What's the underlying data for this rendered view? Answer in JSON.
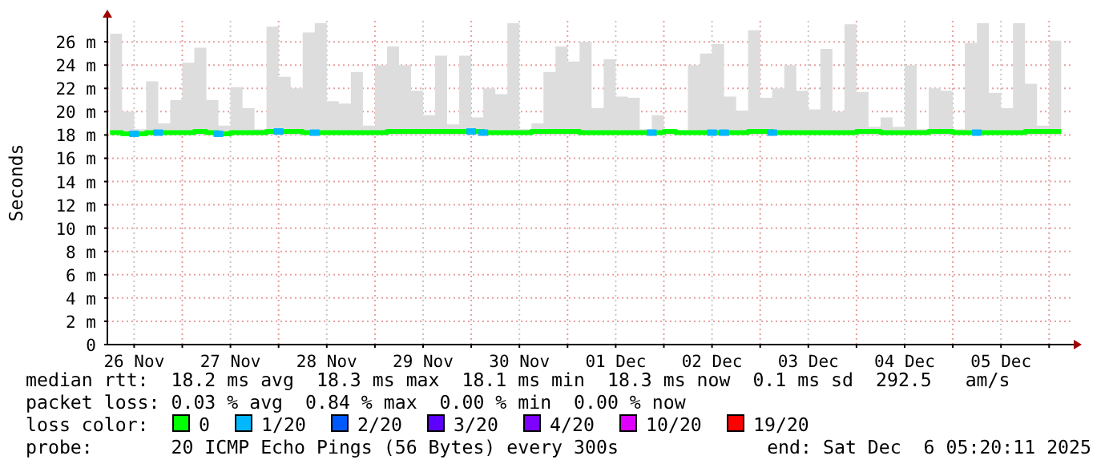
{
  "chart_data": {
    "type": "line",
    "ylabel": "Seconds",
    "legend_title": "loss color:",
    "legend": "bottom",
    "grid": true,
    "line_style": "solid",
    "marker": "none",
    "xlim": [
      "2025-11-26T05:20",
      "2025-12-06T05:20"
    ],
    "xticks": [
      {
        "value": "2025-11-26T12:00",
        "label": "26 Nov"
      },
      {
        "value": "2025-11-27T00:00",
        "label": null
      },
      {
        "value": "2025-11-27T12:00",
        "label": "27 Nov"
      },
      {
        "value": "2025-11-28T00:00",
        "label": null
      },
      {
        "value": "2025-11-28T12:00",
        "label": "28 Nov"
      },
      {
        "value": "2025-11-29T00:00",
        "label": null
      },
      {
        "value": "2025-11-29T12:00",
        "label": "29 Nov"
      },
      {
        "value": "2025-11-30T00:00",
        "label": null
      },
      {
        "value": "2025-11-30T12:00",
        "label": "30 Nov"
      },
      {
        "value": "2025-12-01T00:00",
        "label": null
      },
      {
        "value": "2025-12-01T12:00",
        "label": "01 Dec"
      },
      {
        "value": "2025-12-02T00:00",
        "label": null
      },
      {
        "value": "2025-12-02T12:00",
        "label": "02 Dec"
      },
      {
        "value": "2025-12-03T00:00",
        "label": null
      },
      {
        "value": "2025-12-03T12:00",
        "label": "03 Dec"
      },
      {
        "value": "2025-12-04T00:00",
        "label": null
      },
      {
        "value": "2025-12-04T12:00",
        "label": "04 Dec"
      },
      {
        "value": "2025-12-05T00:00",
        "label": null
      },
      {
        "value": "2025-12-05T12:00",
        "label": "05 Dec"
      },
      {
        "value": "2025-12-06T00:00",
        "label": null
      }
    ],
    "ylim": [
      0,
      27.8
    ],
    "yticks": [
      0,
      {
        "value": 2,
        "label": "2 m"
      },
      {
        "value": 4,
        "label": "4 m"
      },
      {
        "value": 6,
        "label": "6 m"
      },
      {
        "value": 8,
        "label": "8 m"
      },
      {
        "value": 10,
        "label": "10 m"
      },
      {
        "value": 12,
        "label": "12 m"
      },
      {
        "value": 14,
        "label": "14 m"
      },
      {
        "value": 16,
        "label": "16 m"
      },
      {
        "value": 18,
        "label": "18 m"
      },
      {
        "value": 20,
        "label": "20 m"
      },
      {
        "value": 22,
        "label": "22 m"
      },
      {
        "value": 24,
        "label": "24 m"
      },
      {
        "value": 26,
        "label": "26 m"
      }
    ],
    "x": [
      "2025-11-26T06:00",
      "2025-11-26T09:00",
      "2025-11-26T12:00",
      "2025-11-26T15:00",
      "2025-11-26T18:00",
      "2025-11-26T21:00",
      "2025-11-27T00:00",
      "2025-11-27T03:00",
      "2025-11-27T06:00",
      "2025-11-27T09:00",
      "2025-11-27T12:00",
      "2025-11-27T15:00",
      "2025-11-27T18:00",
      "2025-11-27T21:00",
      "2025-11-28T00:00",
      "2025-11-28T03:00",
      "2025-11-28T06:00",
      "2025-11-28T09:00",
      "2025-11-28T12:00",
      "2025-11-28T15:00",
      "2025-11-28T18:00",
      "2025-11-28T21:00",
      "2025-11-29T00:00",
      "2025-11-29T03:00",
      "2025-11-29T06:00",
      "2025-11-29T09:00",
      "2025-11-29T12:00",
      "2025-11-29T15:00",
      "2025-11-29T18:00",
      "2025-11-29T21:00",
      "2025-11-30T00:00",
      "2025-11-30T03:00",
      "2025-11-30T06:00",
      "2025-11-30T09:00",
      "2025-11-30T12:00",
      "2025-11-30T15:00",
      "2025-11-30T18:00",
      "2025-11-30T21:00",
      "2025-12-01T00:00",
      "2025-12-01T03:00",
      "2025-12-01T06:00",
      "2025-12-01T09:00",
      "2025-12-01T12:00",
      "2025-12-01T15:00",
      "2025-12-01T18:00",
      "2025-12-01T21:00",
      "2025-12-02T00:00",
      "2025-12-02T03:00",
      "2025-12-02T06:00",
      "2025-12-02T09:00",
      "2025-12-02T12:00",
      "2025-12-02T15:00",
      "2025-12-02T18:00",
      "2025-12-02T21:00",
      "2025-12-03T00:00",
      "2025-12-03T03:00",
      "2025-12-03T06:00",
      "2025-12-03T09:00",
      "2025-12-03T12:00",
      "2025-12-03T15:00",
      "2025-12-03T18:00",
      "2025-12-03T21:00",
      "2025-12-04T00:00",
      "2025-12-04T03:00",
      "2025-12-04T06:00",
      "2025-12-04T09:00",
      "2025-12-04T12:00",
      "2025-12-04T15:00",
      "2025-12-04T18:00",
      "2025-12-04T21:00",
      "2025-12-05T00:00",
      "2025-12-05T03:00",
      "2025-12-05T06:00",
      "2025-12-05T09:00",
      "2025-12-05T12:00",
      "2025-12-05T15:00",
      "2025-12-05T18:00",
      "2025-12-05T21:00",
      "2025-12-06T00:00",
      "2025-12-06T03:00"
    ],
    "series": [
      {
        "name": "0",
        "color": "#00ff00",
        "values": [
          18.2,
          18.1,
          18.1,
          18.2,
          18.2,
          18.2,
          18.2,
          18.3,
          18.2,
          18.1,
          18.2,
          18.2,
          18.2,
          18.3,
          18.3,
          18.3,
          18.2,
          18.2,
          18.2,
          18.2,
          18.2,
          18.2,
          18.2,
          18.3,
          18.3,
          18.3,
          18.3,
          18.3,
          18.3,
          18.3,
          18.3,
          18.2,
          18.2,
          18.2,
          18.2,
          18.3,
          18.3,
          18.3,
          18.3,
          18.2,
          18.2,
          18.2,
          18.2,
          18.2,
          18.2,
          18.2,
          18.3,
          18.2,
          18.2,
          18.2,
          18.2,
          18.2,
          18.2,
          18.3,
          18.3,
          18.2,
          18.2,
          18.2,
          18.2,
          18.2,
          18.2,
          18.2,
          18.3,
          18.3,
          18.2,
          18.2,
          18.2,
          18.2,
          18.3,
          18.3,
          18.2,
          18.2,
          18.2,
          18.2,
          18.2,
          18.2,
          18.3,
          18.3,
          18.3,
          18.3
        ],
        "lower": [
          18,
          18,
          18,
          18,
          18,
          18,
          18,
          18,
          18,
          18,
          18,
          18,
          18,
          18,
          18,
          18,
          18,
          18,
          18,
          18,
          18,
          18,
          18,
          18,
          18,
          18,
          18,
          18,
          18,
          18,
          18,
          18,
          18,
          18,
          18,
          18,
          18,
          18,
          18,
          18,
          18,
          18,
          18,
          18,
          18,
          18,
          18,
          18,
          18,
          18,
          18,
          18,
          18,
          18,
          18,
          18,
          18,
          18,
          18,
          18,
          18,
          18,
          18,
          18,
          18,
          18,
          18,
          18,
          18,
          18,
          18,
          18,
          18,
          18,
          18,
          18,
          18,
          18,
          18,
          18
        ],
        "upper": [
          26.7,
          20.0,
          18.5,
          22.6,
          19.0,
          21.0,
          24.2,
          25.5,
          21.0,
          18.8,
          22.1,
          20.3,
          18.5,
          27.3,
          23.0,
          22.0,
          26.8,
          27.6,
          20.9,
          20.7,
          23.4,
          18.8,
          24.0,
          25.6,
          24.0,
          21.8,
          19.7,
          24.8,
          18.9,
          24.8,
          19.5,
          22.0,
          21.5,
          27.6,
          18.5,
          19.0,
          23.4,
          25.6,
          24.3,
          26.0,
          20.3,
          24.5,
          21.3,
          21.2,
          18.5,
          19.7,
          18.5,
          18.4,
          24.0,
          25.0,
          25.8,
          21.3,
          20.1,
          27.0,
          21.2,
          22.0,
          24.0,
          21.8,
          20.2,
          25.4,
          20.0,
          27.5,
          21.7,
          18.7,
          19.5,
          18.7,
          24.0,
          18.5,
          22.0,
          21.8,
          18.5,
          25.9,
          27.6,
          21.6,
          20.3,
          27.6,
          22.4,
          18.8,
          26.1,
          19.0
        ]
      },
      {
        "name": "1/20",
        "type": "scatter",
        "marker": "square",
        "color": "#00b8ff",
        "x": [
          "2025-11-26T12:00",
          "2025-11-26T18:00",
          "2025-11-27T09:00",
          "2025-11-28T00:00",
          "2025-11-28T09:00",
          "2025-11-30T00:00",
          "2025-11-30T03:00",
          "2025-12-01T21:00",
          "2025-12-02T12:00",
          "2025-12-02T15:00",
          "2025-12-03T03:00",
          "2025-12-05T06:00"
        ],
        "values": [
          18.1,
          18.2,
          18.1,
          18.3,
          18.2,
          18.3,
          18.2,
          18.2,
          18.2,
          18.2,
          18.2,
          18.2
        ]
      },
      {
        "name": "2/20",
        "type": "scatter",
        "marker": "square",
        "color": "#0059ff",
        "values": [
          null,
          null,
          null,
          null,
          null,
          null,
          null,
          null,
          null,
          null,
          null,
          null,
          null,
          null,
          null,
          null,
          null,
          null,
          null,
          null,
          null,
          null,
          null,
          null,
          null,
          null,
          null,
          null,
          null,
          null,
          null,
          null,
          null,
          null,
          null,
          null,
          null,
          null,
          null,
          null,
          null,
          null,
          null,
          null,
          null,
          null,
          null,
          null,
          null,
          null,
          null,
          null,
          null,
          null,
          null,
          null,
          null,
          null,
          null,
          null,
          null,
          null,
          null,
          null,
          null,
          null,
          null,
          null,
          null,
          null,
          null,
          null,
          null,
          null,
          null,
          null,
          null,
          null,
          null,
          null
        ]
      },
      {
        "name": "3/20",
        "type": "scatter",
        "marker": "square",
        "color": "#5e00ff",
        "values": [
          null,
          null,
          null,
          null,
          null,
          null,
          null,
          null,
          null,
          null,
          null,
          null,
          null,
          null,
          null,
          null,
          null,
          null,
          null,
          null,
          null,
          null,
          null,
          null,
          null,
          null,
          null,
          null,
          null,
          null,
          null,
          null,
          null,
          null,
          null,
          null,
          null,
          null,
          null,
          null,
          null,
          null,
          null,
          null,
          null,
          null,
          null,
          null,
          null,
          null,
          null,
          null,
          null,
          null,
          null,
          null,
          null,
          null,
          null,
          null,
          null,
          null,
          null,
          null,
          null,
          null,
          null,
          null,
          null,
          null,
          null,
          null,
          null,
          null,
          null,
          null,
          null,
          null,
          null,
          null
        ]
      },
      {
        "name": "4/20",
        "type": "scatter",
        "marker": "square",
        "color": "#7e00ff",
        "values": [
          null,
          null,
          null,
          null,
          null,
          null,
          null,
          null,
          null,
          null,
          null,
          null,
          null,
          null,
          null,
          null,
          null,
          null,
          null,
          null,
          null,
          null,
          null,
          null,
          null,
          null,
          null,
          null,
          null,
          null,
          null,
          null,
          null,
          null,
          null,
          null,
          null,
          null,
          null,
          null,
          null,
          null,
          null,
          null,
          null,
          null,
          null,
          null,
          null,
          null,
          null,
          null,
          null,
          null,
          null,
          null,
          null,
          null,
          null,
          null,
          null,
          null,
          null,
          null,
          null,
          null,
          null,
          null,
          null,
          null,
          null,
          null,
          null,
          null,
          null,
          null,
          null,
          null,
          null,
          null
        ]
      },
      {
        "name": "10/20",
        "type": "scatter",
        "marker": "square",
        "color": "#dd00ff",
        "values": [
          null,
          null,
          null,
          null,
          null,
          null,
          null,
          null,
          null,
          null,
          null,
          null,
          null,
          null,
          null,
          null,
          null,
          null,
          null,
          null,
          null,
          null,
          null,
          null,
          null,
          null,
          null,
          null,
          null,
          null,
          null,
          null,
          null,
          null,
          null,
          null,
          null,
          null,
          null,
          null,
          null,
          null,
          null,
          null,
          null,
          null,
          null,
          null,
          null,
          null,
          null,
          null,
          null,
          null,
          null,
          null,
          null,
          null,
          null,
          null,
          null,
          null,
          null,
          null,
          null,
          null,
          null,
          null,
          null,
          null,
          null,
          null,
          null,
          null,
          null,
          null,
          null,
          null,
          null,
          null
        ]
      },
      {
        "name": "19/20",
        "type": "scatter",
        "marker": "square",
        "color": "#ff0000",
        "values": [
          null,
          null,
          null,
          null,
          null,
          null,
          null,
          null,
          null,
          null,
          null,
          null,
          null,
          null,
          null,
          null,
          null,
          null,
          null,
          null,
          null,
          null,
          null,
          null,
          null,
          null,
          null,
          null,
          null,
          null,
          null,
          null,
          null,
          null,
          null,
          null,
          null,
          null,
          null,
          null,
          null,
          null,
          null,
          null,
          null,
          null,
          null,
          null,
          null,
          null,
          null,
          null,
          null,
          null,
          null,
          null,
          null,
          null,
          null,
          null,
          null,
          null,
          null,
          null,
          null,
          null,
          null,
          null,
          null,
          null,
          null,
          null,
          null,
          null,
          null,
          null,
          null,
          null,
          null,
          null
        ]
      }
    ],
    "annotations": [
      "median rtt:  18.2 ms avg  18.3 ms max  18.1 ms min  18.3 ms now  0.1 ms sd  292.5   am/s",
      "packet loss: 0.03 % avg  0.84 % max  0.00 % min  0.00 % now",
      "probe:       20 ICMP Echo Pings (56 Bytes) every 300s",
      "end: Sat Dec  6 05:20:11 2025"
    ]
  }
}
